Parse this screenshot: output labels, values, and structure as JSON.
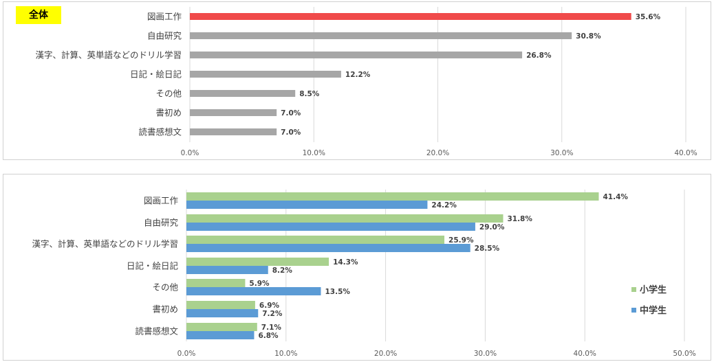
{
  "colors": {
    "highlight": "#f04a4a",
    "gray": "#a6a6a6",
    "elementary": "#a9d18e",
    "juniorhigh": "#5b9bd5",
    "grid": "#d9d9d9"
  },
  "chart_data": [
    {
      "type": "bar",
      "orientation": "horizontal",
      "badge": "全体",
      "categories": [
        "図画工作",
        "自由研究",
        "漢字、計算、英単語などのドリル学習",
        "日記・絵日記",
        "その他",
        "書初め",
        "読書感想文"
      ],
      "values": [
        35.6,
        30.8,
        26.8,
        12.2,
        8.5,
        7.0,
        7.0
      ],
      "value_labels": [
        "35.6%",
        "30.8%",
        "26.8%",
        "12.2%",
        "8.5%",
        "7.0%",
        "7.0%"
      ],
      "xlim": [
        0,
        40
      ],
      "ticks": [
        0,
        10,
        20,
        30,
        40
      ],
      "tick_labels": [
        "0.0%",
        "10.0%",
        "20.0%",
        "30.0%",
        "40.0%"
      ],
      "grid": true
    },
    {
      "type": "bar",
      "orientation": "horizontal",
      "categories": [
        "図画工作",
        "自由研究",
        "漢字、計算、英単語などのドリル学習",
        "日記・絵日記",
        "その他",
        "書初め",
        "読書感想文"
      ],
      "series": [
        {
          "name": "小学生",
          "values": [
            41.4,
            31.8,
            25.9,
            14.3,
            5.9,
            6.9,
            7.1
          ],
          "value_labels": [
            "41.4%",
            "31.8%",
            "25.9%",
            "14.3%",
            "5.9%",
            "6.9%",
            "7.1%"
          ]
        },
        {
          "name": "中学生",
          "values": [
            24.2,
            29.0,
            28.5,
            8.2,
            13.5,
            7.2,
            6.8
          ],
          "value_labels": [
            "24.2%",
            "29.0%",
            "28.5%",
            "8.2%",
            "13.5%",
            "7.2%",
            "6.8%"
          ]
        }
      ],
      "xlim": [
        0,
        50
      ],
      "ticks": [
        0,
        10,
        20,
        30,
        40,
        50
      ],
      "tick_labels": [
        "0.0%",
        "10.0%",
        "20.0%",
        "30.0%",
        "40.0%",
        "50.0%"
      ],
      "legend": "right",
      "grid": true
    }
  ]
}
